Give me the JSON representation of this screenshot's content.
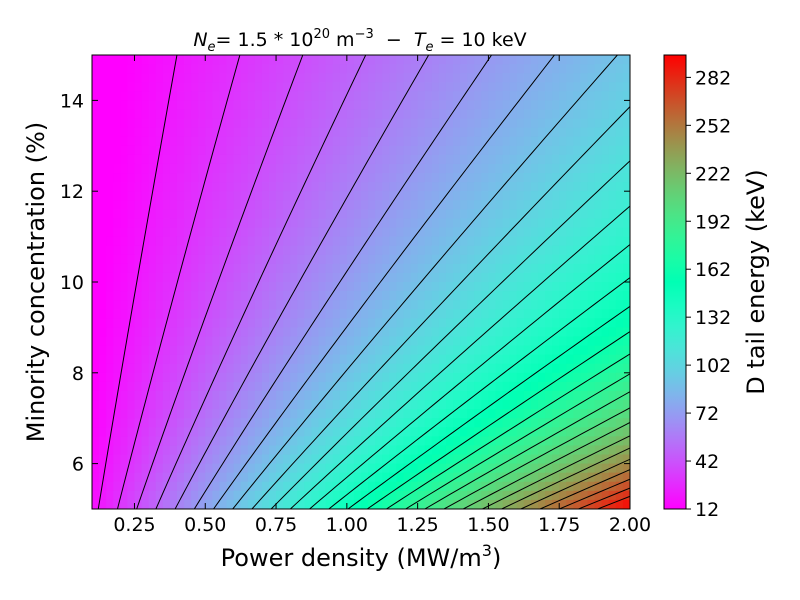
{
  "chart_data": {
    "type": "heatmap",
    "subtype": "filled-contour",
    "title": {
      "ne_symbol": "N",
      "ne_sub": "e",
      "ne_value": "= 1.5 * 10",
      "ne_exp": "20",
      "ne_unit": " m",
      "ne_unit_exp": "−3",
      "separator": "  −  ",
      "te_symbol": "T",
      "te_sub": "e",
      "te_value": "= 10 keV"
    },
    "xlabel": "Power density (MW/m",
    "xlabel_exp": "3",
    "xlabel_close": ")",
    "ylabel": "Minority concentration (%)",
    "colorbar_label": "D tail energy (keV)",
    "colormap": "rainbow",
    "xlim": [
      0.1,
      2.0
    ],
    "ylim": [
      5,
      15
    ],
    "x_ticks": [
      0.25,
      0.5,
      0.75,
      1.0,
      1.25,
      1.5,
      1.75,
      2.0
    ],
    "x_tick_labels": [
      "0.25",
      "0.50",
      "0.75",
      "1.00",
      "1.25",
      "1.50",
      "1.75",
      "2.00"
    ],
    "y_ticks": [
      6,
      8,
      10,
      12,
      14
    ],
    "y_tick_labels": [
      "6",
      "8",
      "10",
      "12",
      "14"
    ],
    "colorbar_range": [
      12,
      296
    ],
    "colorbar_ticks": [
      12,
      42,
      72,
      102,
      132,
      162,
      192,
      222,
      252,
      282
    ],
    "colorbar_tick_labels": [
      "12",
      "42",
      "72",
      "102",
      "132",
      "162",
      "192",
      "222",
      "252",
      "282"
    ],
    "contour_levels": [
      20,
      30,
      40,
      50,
      60,
      70,
      80,
      90,
      100,
      110,
      120,
      130,
      140,
      150,
      160,
      170,
      180,
      190,
      200,
      210,
      220,
      230,
      240,
      250,
      260,
      270,
      280
    ],
    "grid": false
  }
}
